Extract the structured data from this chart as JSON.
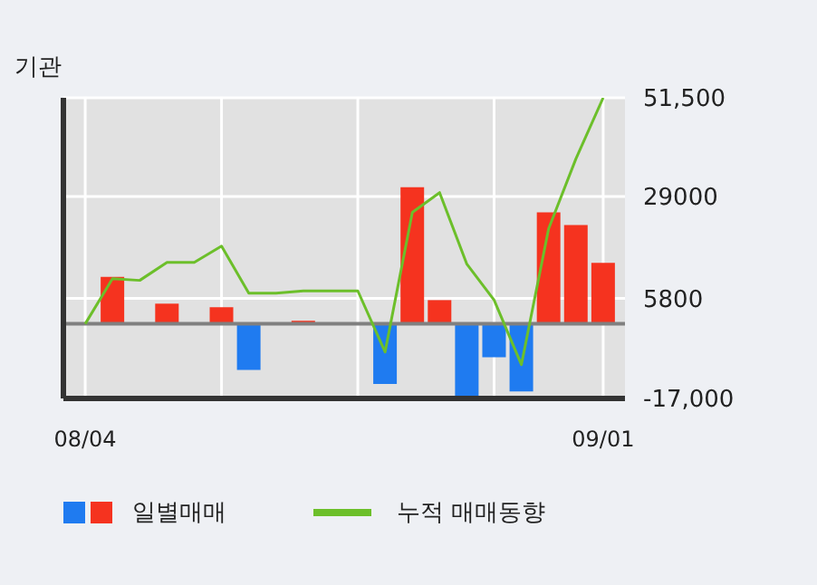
{
  "chart_data": {
    "type": "bar",
    "title": "기관",
    "categories": [
      "08/04",
      null,
      null,
      null,
      null,
      null,
      null,
      null,
      null,
      null,
      null,
      null,
      null,
      null,
      null,
      null,
      null,
      null,
      null,
      "09/01"
    ],
    "series": [
      {
        "name": "일별매매",
        "colors": [
          "#f5331f",
          "#f5331f",
          "#f5331f",
          "#f5331f",
          "#1f7bf0",
          "#f5331f",
          "#1f7bf0",
          "#f5331f",
          "#f5331f",
          "#f5331f",
          "#f5331f",
          "#1f7bf0",
          "#f5331f",
          "#f5331f",
          "#1f7bf0",
          "#1f7bf0",
          "#1f7bf0",
          "#f5331f",
          "#f5331f",
          "#f5331f"
        ],
        "values": [
          null,
          10700,
          null,
          4600,
          null,
          3800,
          -10500,
          null,
          700,
          null,
          null,
          -13700,
          31100,
          5400,
          -17000,
          -7600,
          -15400,
          25400,
          22500,
          13900
        ]
      },
      {
        "name": "누적 매매동향",
        "type": "line",
        "color": "#6cbf2a",
        "values": [
          0,
          10300,
          9900,
          14000,
          14000,
          17700,
          7000,
          7000,
          7500,
          7500,
          7500,
          -6400,
          25400,
          29900,
          13600,
          5400,
          -9300,
          21700,
          37600,
          51500
        ]
      }
    ],
    "ylim": [
      -17000,
      51500
    ],
    "yticks": [
      {
        "value": 51500,
        "label": "51,500"
      },
      29000,
      5800,
      {
        "value": -17000,
        "label": "-17,000"
      }
    ],
    "ref_lines": [
      {
        "axis": "y",
        "value": 0,
        "color": "#808080"
      }
    ],
    "grid": true,
    "legend": "bottom"
  }
}
